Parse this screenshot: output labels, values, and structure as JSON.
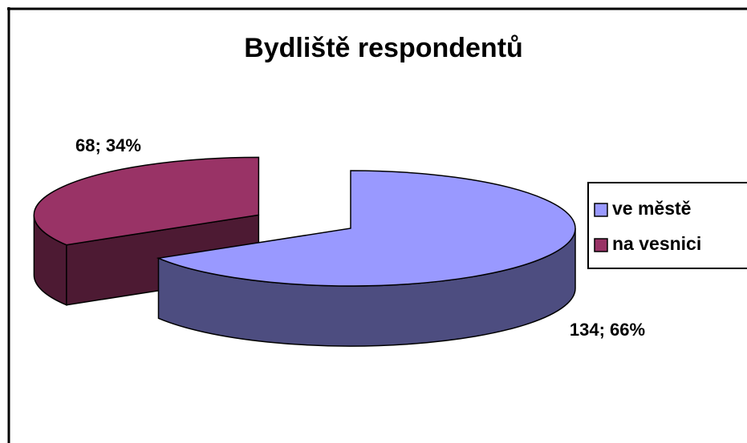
{
  "chart_data": {
    "type": "pie3d",
    "title": "Bydliště respondentů",
    "categories": [
      "ve městě",
      "na vesnici"
    ],
    "values": [
      134,
      68
    ],
    "value_labels": [
      "134; 66%",
      "68; 34%"
    ],
    "colors": [
      "#9999ff",
      "#993366"
    ],
    "legend": "right"
  }
}
